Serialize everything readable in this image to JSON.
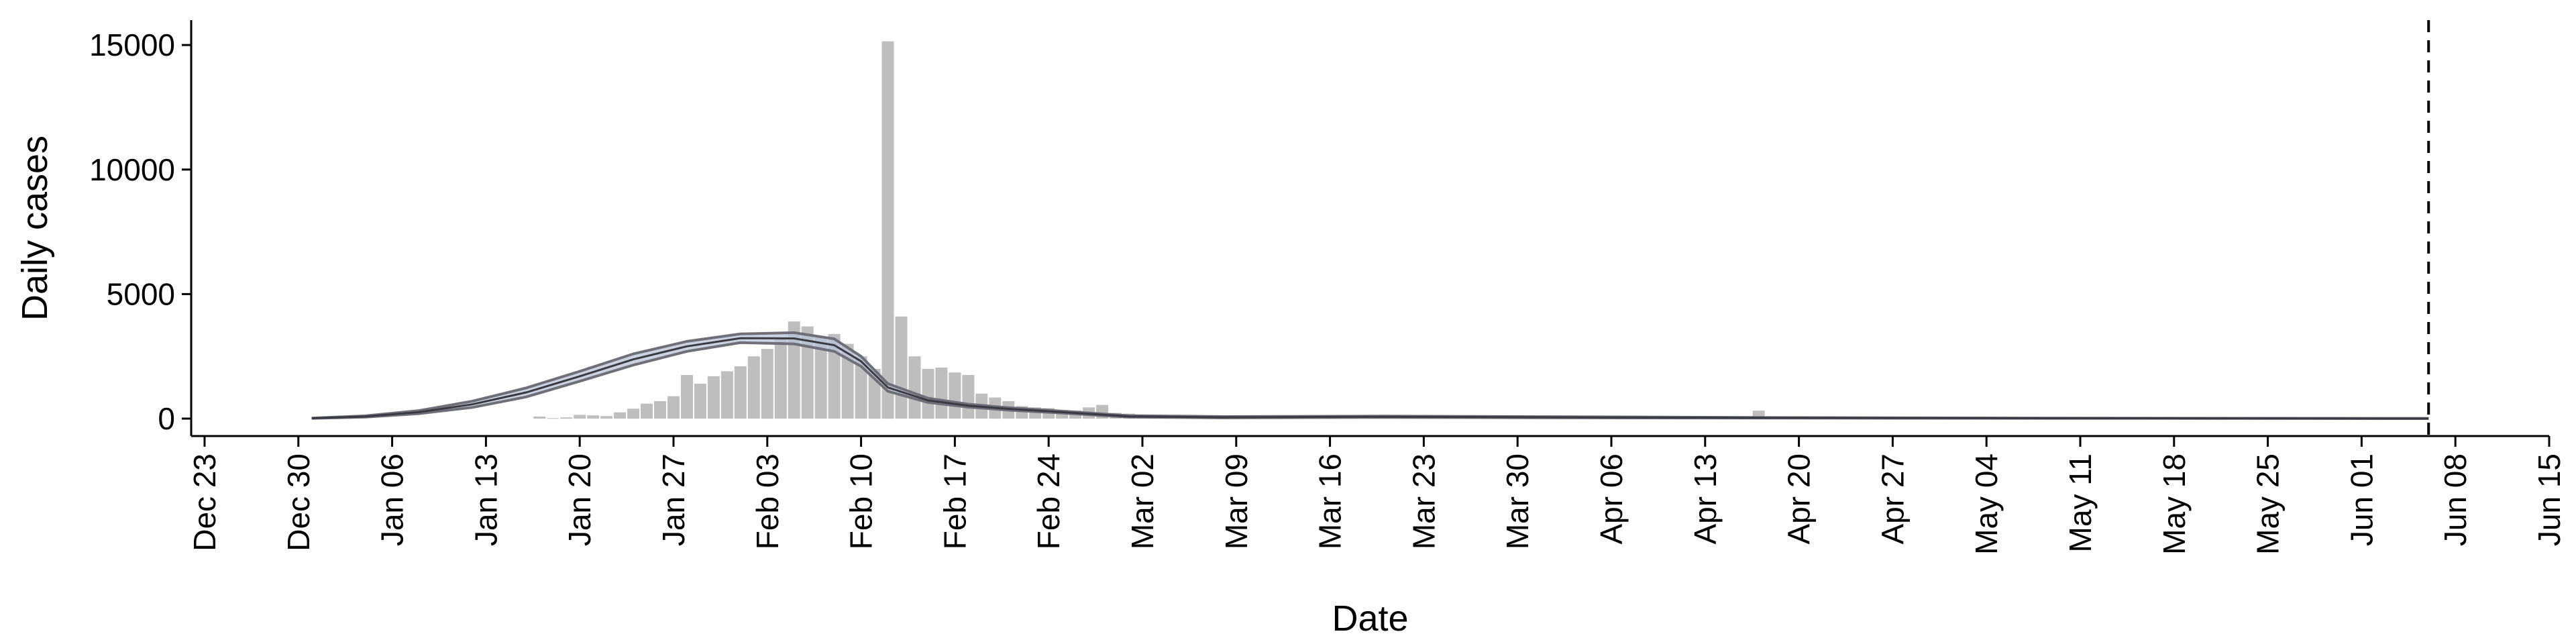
{
  "chart_data": {
    "type": "bar",
    "title": "",
    "xlabel": "Date",
    "ylabel": "Daily cases",
    "ylim": [
      -700,
      16000
    ],
    "yticks": [
      0,
      5000,
      10000,
      15000
    ],
    "xlim": [
      "2019-12-22",
      "2020-06-15"
    ],
    "xtick_labels": [
      {
        "date": "2019-12-23",
        "label": "Dec 23"
      },
      {
        "date": "2019-12-30",
        "label": "Dec 30"
      },
      {
        "date": "2020-01-06",
        "label": "Jan 06"
      },
      {
        "date": "2020-01-13",
        "label": "Jan 13"
      },
      {
        "date": "2020-01-20",
        "label": "Jan 20"
      },
      {
        "date": "2020-01-27",
        "label": "Jan 27"
      },
      {
        "date": "2020-02-03",
        "label": "Feb 03"
      },
      {
        "date": "2020-02-10",
        "label": "Feb 10"
      },
      {
        "date": "2020-02-17",
        "label": "Feb 17"
      },
      {
        "date": "2020-02-24",
        "label": "Feb 24"
      },
      {
        "date": "2020-03-02",
        "label": "Mar 02"
      },
      {
        "date": "2020-03-09",
        "label": "Mar 09"
      },
      {
        "date": "2020-03-16",
        "label": "Mar 16"
      },
      {
        "date": "2020-03-23",
        "label": "Mar 23"
      },
      {
        "date": "2020-03-30",
        "label": "Mar 30"
      },
      {
        "date": "2020-04-06",
        "label": "Apr 06"
      },
      {
        "date": "2020-04-13",
        "label": "Apr 13"
      },
      {
        "date": "2020-04-20",
        "label": "Apr 20"
      },
      {
        "date": "2020-04-27",
        "label": "Apr 27"
      },
      {
        "date": "2020-05-04",
        "label": "May 04"
      },
      {
        "date": "2020-05-11",
        "label": "May 11"
      },
      {
        "date": "2020-05-18",
        "label": "May 18"
      },
      {
        "date": "2020-05-25",
        "label": "May 25"
      },
      {
        "date": "2020-06-01",
        "label": "Jun 01"
      },
      {
        "date": "2020-06-08",
        "label": "Jun 08"
      },
      {
        "date": "2020-06-15",
        "label": "Jun 15"
      }
    ],
    "grid": false,
    "legend": "none",
    "colors": {
      "bars": "#bebebe",
      "band": "#b8c2d6",
      "band_edge": "#6f6f7a",
      "median_line": "#3a3a42",
      "vline": "#000000"
    },
    "vline_date": "2020-06-06",
    "bars": {
      "dates": [
        "2020-01-17",
        "2020-01-18",
        "2020-01-19",
        "2020-01-20",
        "2020-01-21",
        "2020-01-22",
        "2020-01-23",
        "2020-01-24",
        "2020-01-25",
        "2020-01-26",
        "2020-01-27",
        "2020-01-28",
        "2020-01-29",
        "2020-01-30",
        "2020-01-31",
        "2020-02-01",
        "2020-02-02",
        "2020-02-03",
        "2020-02-04",
        "2020-02-05",
        "2020-02-06",
        "2020-02-07",
        "2020-02-08",
        "2020-02-09",
        "2020-02-10",
        "2020-02-11",
        "2020-02-12",
        "2020-02-13",
        "2020-02-14",
        "2020-02-15",
        "2020-02-16",
        "2020-02-17",
        "2020-02-18",
        "2020-02-19",
        "2020-02-20",
        "2020-02-21",
        "2020-02-22",
        "2020-02-23",
        "2020-02-24",
        "2020-02-25",
        "2020-02-26",
        "2020-02-27",
        "2020-02-28",
        "2020-02-29",
        "2020-03-01",
        "2020-03-02",
        "2020-03-03",
        "2020-03-04",
        "2020-03-05",
        "2020-03-06",
        "2020-03-07",
        "2020-03-08",
        "2020-03-09",
        "2020-03-10",
        "2020-03-11",
        "2020-03-12",
        "2020-03-13",
        "2020-03-14",
        "2020-03-15",
        "2020-04-17"
      ],
      "values": [
        80,
        20,
        50,
        150,
        130,
        100,
        250,
        400,
        600,
        700,
        900,
        1750,
        1400,
        1700,
        1900,
        2100,
        2500,
        2800,
        3200,
        3900,
        3700,
        3300,
        3400,
        3000,
        2500,
        2000,
        15150,
        4100,
        2500,
        2000,
        2050,
        1850,
        1750,
        1000,
        850,
        700,
        500,
        450,
        420,
        350,
        330,
        450,
        550,
        230,
        200,
        125,
        120,
        140,
        150,
        100,
        60,
        40,
        20,
        20,
        15,
        10,
        10,
        20,
        30,
        320
      ]
    },
    "model_band": {
      "dates": [
        "2019-12-31",
        "2020-01-04",
        "2020-01-08",
        "2020-01-12",
        "2020-01-16",
        "2020-01-20",
        "2020-01-24",
        "2020-01-28",
        "2020-02-01",
        "2020-02-05",
        "2020-02-08",
        "2020-02-10",
        "2020-02-12",
        "2020-02-15",
        "2020-02-18",
        "2020-02-21",
        "2020-02-25",
        "2020-03-01",
        "2020-03-08",
        "2020-03-20",
        "2020-04-05",
        "2020-04-20",
        "2020-05-10",
        "2020-05-28",
        "2020-06-06"
      ],
      "upper": [
        20,
        110,
        320,
        700,
        1230,
        1900,
        2600,
        3100,
        3400,
        3450,
        3200,
        2500,
        1400,
        820,
        580,
        440,
        300,
        120,
        80,
        100,
        70,
        40,
        20,
        10,
        5
      ],
      "lower": [
        10,
        60,
        200,
        450,
        870,
        1500,
        2150,
        2700,
        3050,
        3000,
        2700,
        2100,
        1100,
        650,
        460,
        340,
        220,
        60,
        30,
        50,
        30,
        20,
        10,
        5,
        2
      ],
      "median": [
        15,
        85,
        260,
        575,
        1050,
        1700,
        2380,
        2900,
        3230,
        3220,
        2950,
        2300,
        1250,
        730,
        520,
        390,
        260,
        90,
        55,
        75,
        50,
        30,
        15,
        8,
        3
      ]
    }
  }
}
